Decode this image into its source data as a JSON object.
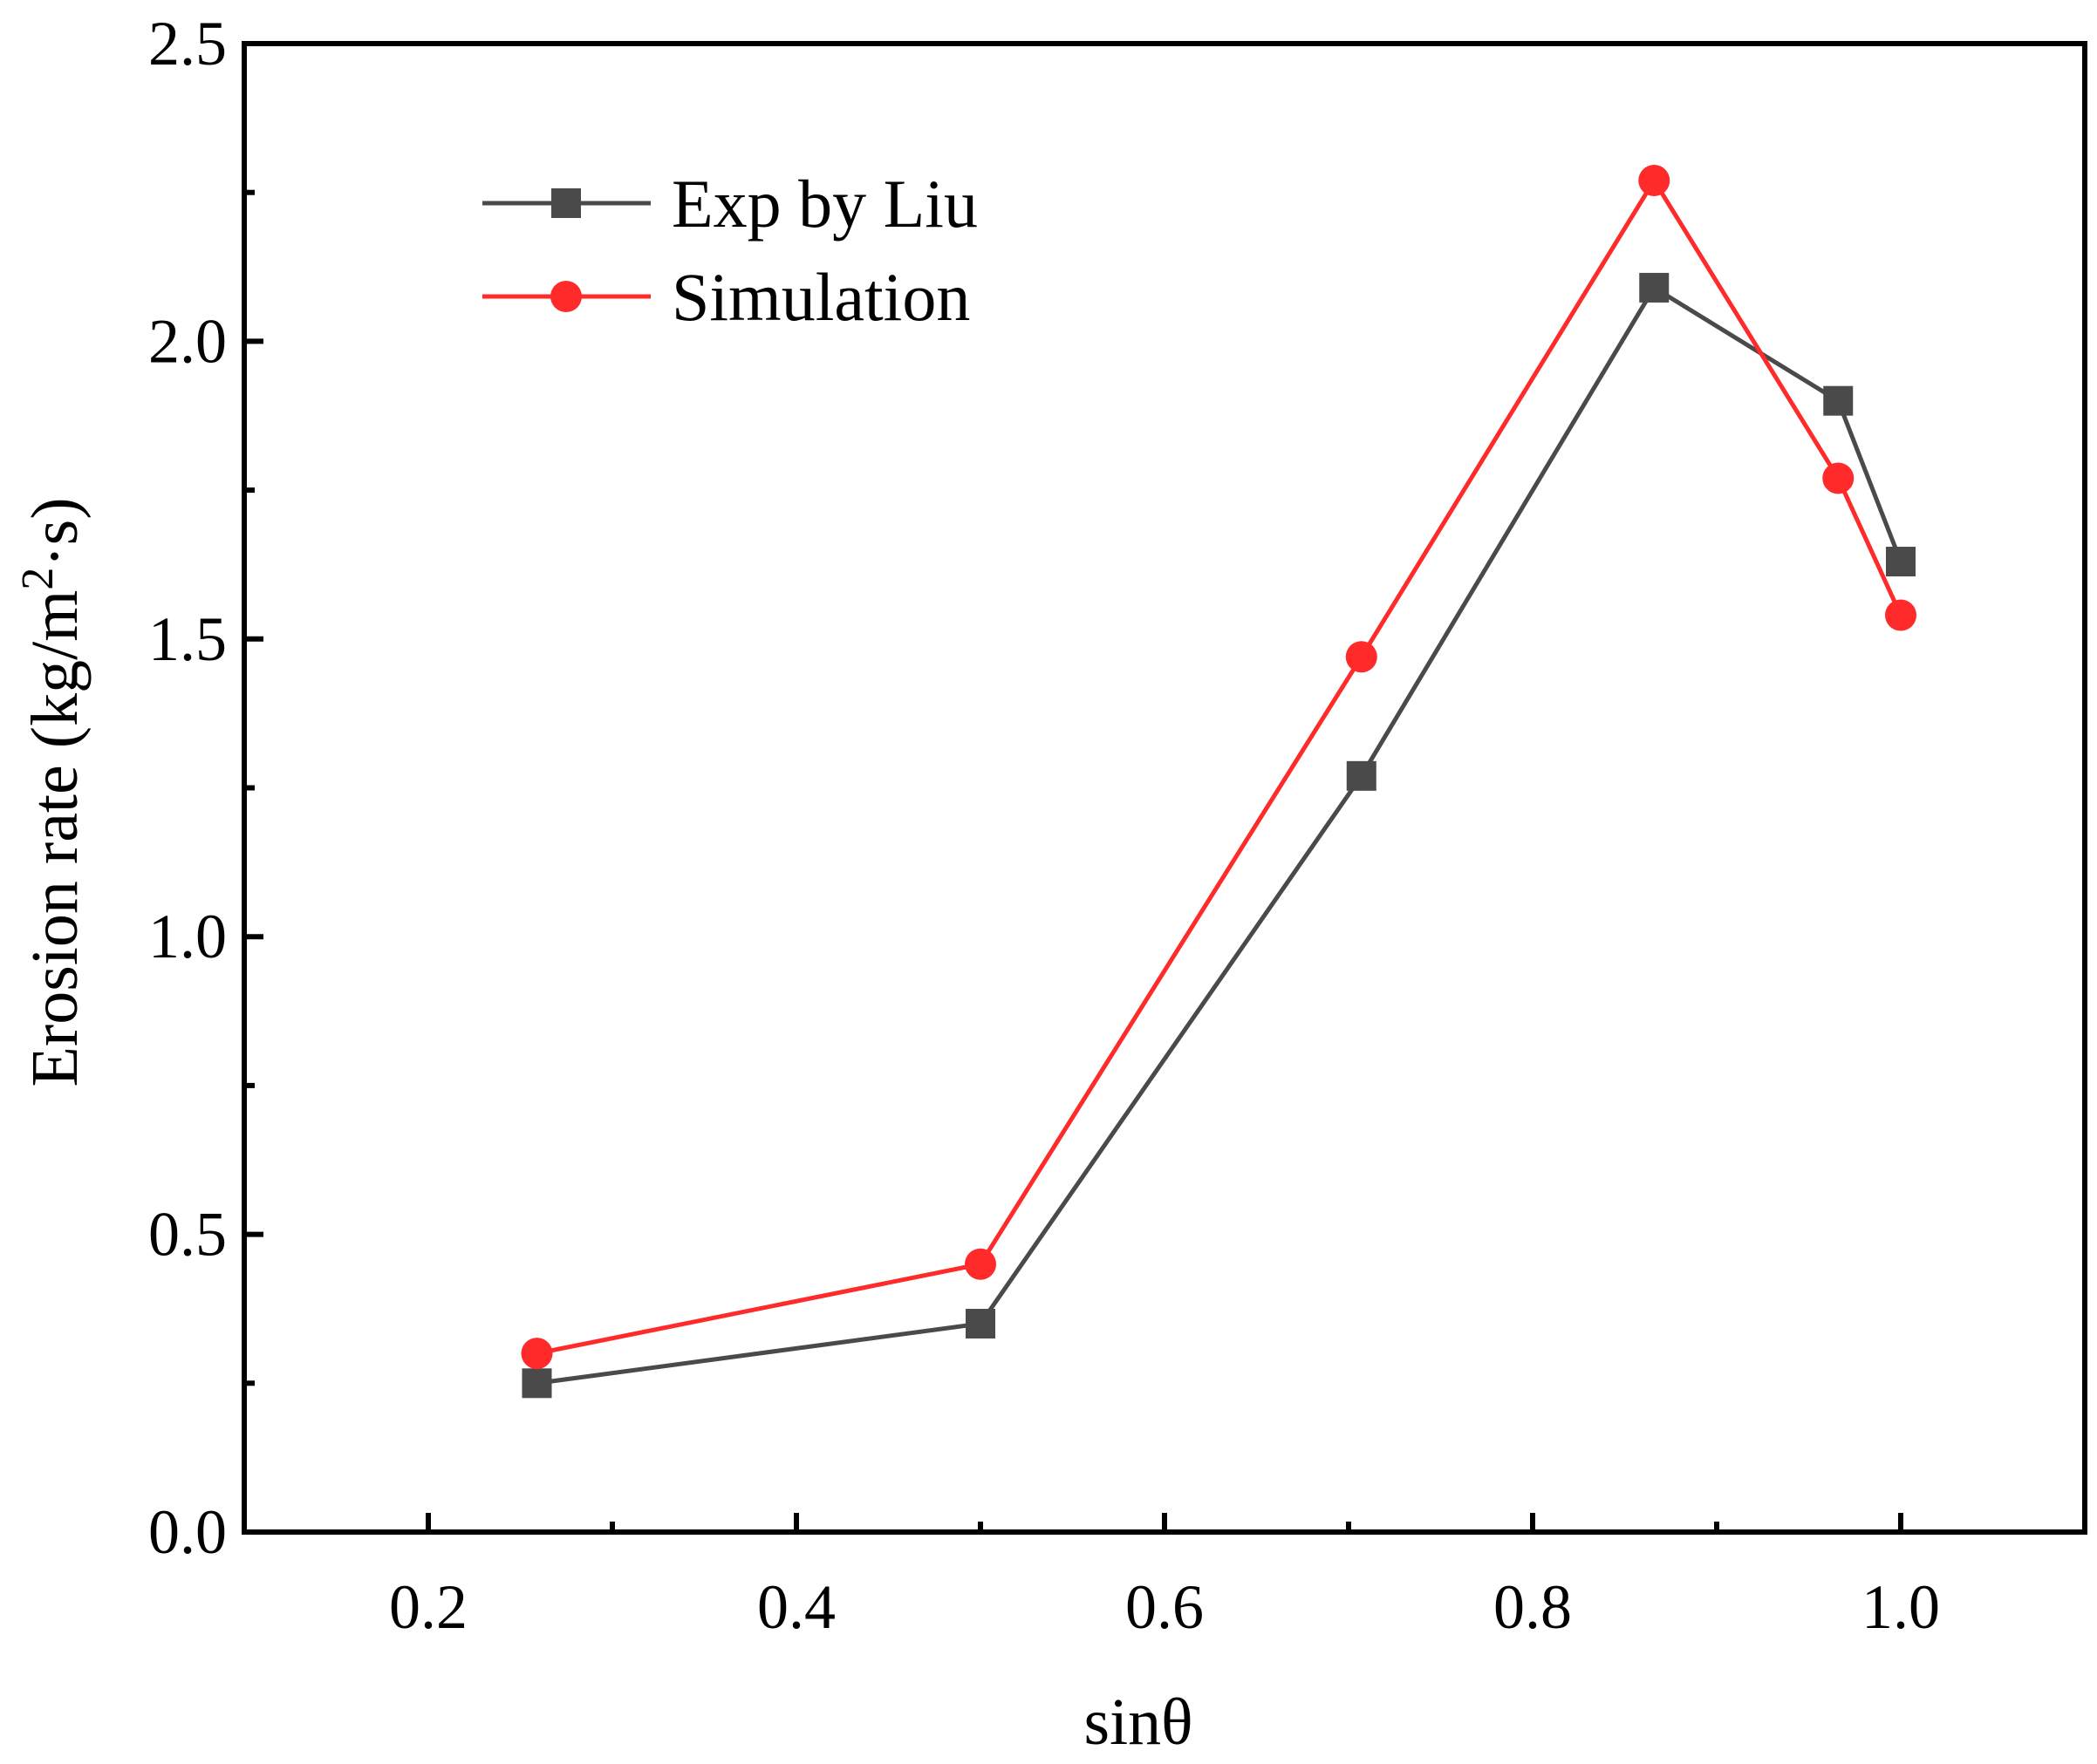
{
  "chart_data": {
    "type": "line",
    "title": "",
    "xlabel": "sinθ",
    "ylabel": "Erosion rate (kg/m",
    "ylabel_superscript": "2",
    "ylabel_suffix": "·s)",
    "xlim": [
      0.1,
      1.1
    ],
    "ylim": [
      0.0,
      2.5
    ],
    "xticks": [
      0.2,
      0.4,
      0.6,
      0.8,
      1.0
    ],
    "xtick_labels": [
      "0.2",
      "0.4",
      "0.6",
      "0.8",
      "1.0"
    ],
    "yticks": [
      0.0,
      0.5,
      1.0,
      1.5,
      2.0,
      2.5
    ],
    "ytick_labels": [
      "0.0",
      "0.5",
      "1.0",
      "1.5",
      "2.0",
      "2.5"
    ],
    "grid": false,
    "legend_position": "top-left",
    "series": [
      {
        "name": "Exp by Liu",
        "marker": "square",
        "color": "#4a4a4a",
        "x": [
          0.259,
          0.5,
          0.707,
          0.866,
          0.966,
          1.0
        ],
        "y": [
          0.25,
          0.35,
          1.27,
          2.09,
          1.9,
          1.63
        ]
      },
      {
        "name": "Simulation",
        "marker": "circle",
        "color": "#ff2a2a",
        "x": [
          0.259,
          0.5,
          0.707,
          0.866,
          0.966,
          1.0
        ],
        "y": [
          0.3,
          0.45,
          1.47,
          2.27,
          1.77,
          1.54
        ]
      }
    ]
  }
}
